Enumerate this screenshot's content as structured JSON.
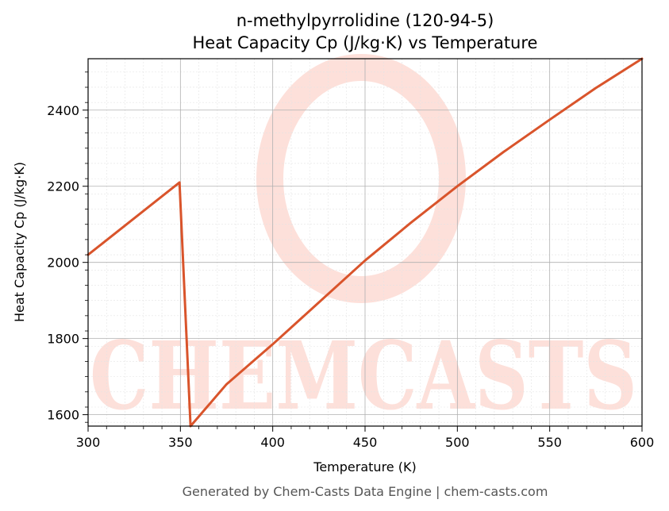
{
  "chart_data": {
    "type": "line",
    "title": "n-methylpyrrolidine (120-94-5)",
    "subtitle": "Heat Capacity Cp (J/kg·K) vs Temperature",
    "xlabel": "Temperature (K)",
    "ylabel": "Heat Capacity Cp (J/kg·K)",
    "xlim": [
      300,
      600
    ],
    "ylim": [
      1570,
      2535
    ],
    "x_ticks": [
      300,
      350,
      400,
      450,
      500,
      550,
      600
    ],
    "y_ticks": [
      1600,
      1800,
      2000,
      2200,
      2400
    ],
    "grid": true,
    "series": [
      {
        "color": "#d9542b",
        "x": [
          300,
          349.5,
          355.5,
          375,
          400,
          425,
          450,
          475,
          500,
          525,
          550,
          575,
          600
        ],
        "y": [
          2020,
          2210,
          1570,
          1680,
          1785,
          1895,
          2005,
          2105,
          2200,
          2290,
          2375,
          2458,
          2535
        ]
      }
    ]
  },
  "watermark": {
    "text": "CHEMCASTS",
    "color": "#fde0da"
  },
  "footer": "Generated by Chem-Casts Data Engine | chem-casts.com"
}
